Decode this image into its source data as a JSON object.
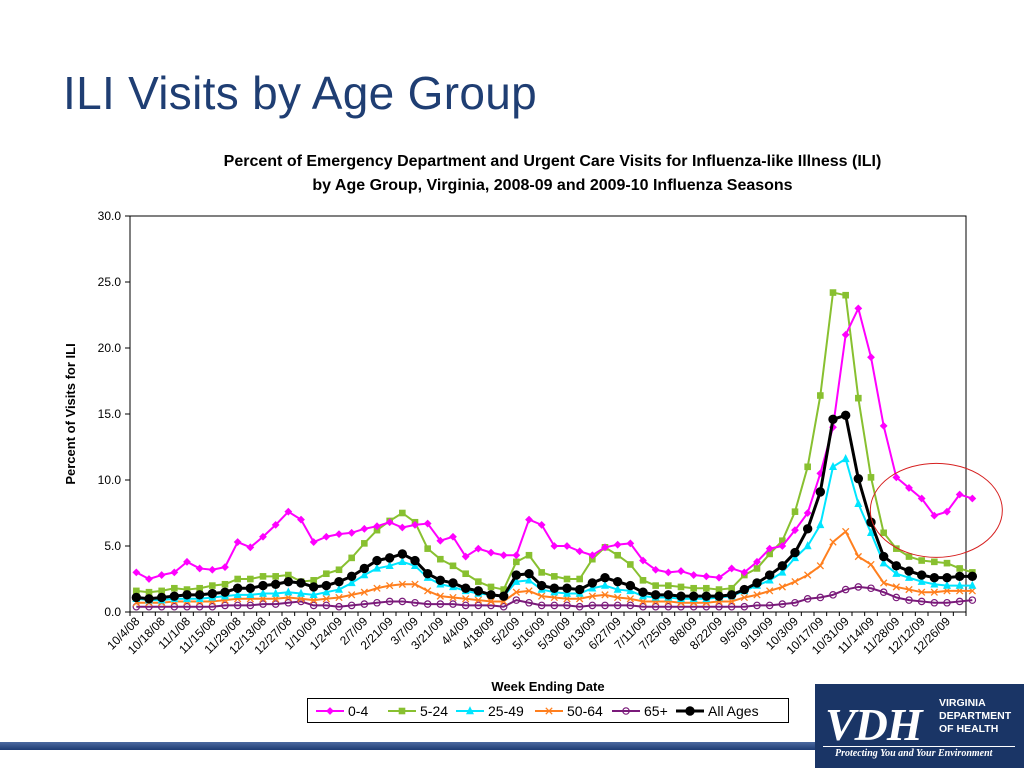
{
  "slide": {
    "title": "ILI Visits by Age Group"
  },
  "logo": {
    "mark": "VDH",
    "department": "VIRGINIA\nDEPARTMENT\nOF HEALTH",
    "tagline": "Protecting You and Your Environment",
    "colors": {
      "background": "#1a3566",
      "text": "#ffffff"
    }
  },
  "chart_data": {
    "type": "line",
    "title_line1": "Percent of Emergency Department and Urgent Care Visits for Influenza-like Illness (ILI)",
    "title_line2": "by Age Group, Virginia, 2008-09 and 2009-10 Influenza Seasons",
    "xlabel": "Week Ending Date",
    "ylabel": "Percent of Visits for ILI",
    "ylim": [
      0,
      30
    ],
    "yticks": [
      "0.0",
      "5.0",
      "10.0",
      "15.0",
      "20.0",
      "25.0",
      "30.0"
    ],
    "grid": false,
    "legend_position": "bottom",
    "annotation": "red circle highlighting late-December values",
    "x_tick_labels": [
      "10/4/08",
      "10/18/08",
      "11/1/08",
      "11/15/08",
      "11/29/08",
      "12/13/08",
      "12/27/08",
      "1/10/09",
      "1/24/09",
      "2/7/09",
      "2/21/09",
      "3/7/09",
      "3/21/09",
      "4/4/09",
      "4/18/09",
      "5/2/09",
      "5/16/09",
      "5/30/09",
      "6/13/09",
      "6/27/09",
      "7/11/09",
      "7/25/09",
      "8/8/09",
      "8/22/09",
      "9/5/09",
      "9/19/09",
      "10/3/09",
      "10/17/09",
      "10/31/09",
      "11/14/09",
      "11/28/09",
      "12/12/09",
      "12/26/09"
    ],
    "x_tick_week_index": [
      0,
      2,
      4,
      6,
      8,
      10,
      12,
      14,
      16,
      18,
      20,
      22,
      24,
      26,
      28,
      30,
      32,
      34,
      36,
      38,
      40,
      42,
      44,
      46,
      48,
      50,
      52,
      54,
      56,
      58,
      60,
      62,
      64
    ],
    "week_count": 66,
    "series": [
      {
        "name": "0-4",
        "color": "#ff00ff",
        "marker": "diamond",
        "values": [
          3.0,
          2.5,
          2.8,
          3.0,
          3.8,
          3.3,
          3.2,
          3.4,
          5.3,
          4.9,
          5.7,
          6.6,
          7.6,
          7.0,
          5.3,
          5.7,
          5.9,
          6.0,
          6.3,
          6.5,
          6.8,
          6.4,
          6.6,
          6.7,
          5.4,
          5.7,
          4.2,
          4.8,
          4.5,
          4.3,
          4.3,
          7.0,
          6.6,
          5.0,
          5.0,
          4.6,
          4.3,
          4.9,
          5.1,
          5.2,
          3.9,
          3.2,
          3.0,
          3.1,
          2.8,
          2.7,
          2.6,
          3.3,
          3.0,
          3.8,
          4.8,
          5.0,
          6.2,
          7.5,
          10.5,
          14.0,
          21.0,
          23.0,
          19.3,
          14.1,
          10.2,
          9.4,
          8.6,
          7.3,
          7.6,
          8.9,
          8.6
        ]
      },
      {
        "name": "5-24",
        "color": "#88c030",
        "marker": "square",
        "values": [
          1.6,
          1.5,
          1.6,
          1.8,
          1.7,
          1.8,
          2.0,
          2.1,
          2.5,
          2.5,
          2.7,
          2.7,
          2.8,
          2.3,
          2.4,
          2.9,
          3.2,
          4.1,
          5.2,
          6.2,
          6.9,
          7.5,
          6.8,
          4.8,
          4.0,
          3.5,
          2.9,
          2.3,
          1.9,
          1.7,
          3.8,
          4.3,
          3.0,
          2.7,
          2.5,
          2.5,
          4.0,
          4.9,
          4.3,
          3.6,
          2.4,
          2.0,
          2.0,
          1.9,
          1.8,
          1.8,
          1.7,
          1.8,
          2.8,
          3.3,
          4.4,
          5.4,
          7.6,
          11.0,
          16.4,
          24.2,
          24.0,
          16.2,
          10.2,
          6.0,
          4.8,
          4.2,
          3.9,
          3.8,
          3.7,
          3.3,
          3.0
        ]
      },
      {
        "name": "25-49",
        "color": "#00e5ff",
        "marker": "triangle",
        "values": [
          1.0,
          0.9,
          0.9,
          1.0,
          1.0,
          1.0,
          1.1,
          1.2,
          1.3,
          1.3,
          1.4,
          1.4,
          1.5,
          1.4,
          1.3,
          1.5,
          1.7,
          2.2,
          2.8,
          3.3,
          3.5,
          3.8,
          3.5,
          2.6,
          2.1,
          1.9,
          1.6,
          1.4,
          1.3,
          1.2,
          2.3,
          2.4,
          1.7,
          1.5,
          1.4,
          1.4,
          1.8,
          2.0,
          1.7,
          1.6,
          1.2,
          1.1,
          1.1,
          1.0,
          1.0,
          1.0,
          1.1,
          1.2,
          1.6,
          2.0,
          2.4,
          3.0,
          4.1,
          5.0,
          6.6,
          11.0,
          11.6,
          8.2,
          6.0,
          3.7,
          2.9,
          2.6,
          2.3,
          2.1,
          2.0,
          2.0,
          2.0
        ]
      },
      {
        "name": "50-64",
        "color": "#ff7f1e",
        "marker": "x",
        "values": [
          0.7,
          0.7,
          0.7,
          0.8,
          0.8,
          0.8,
          0.8,
          0.9,
          1.0,
          1.0,
          1.0,
          1.0,
          1.1,
          1.0,
          0.9,
          1.0,
          1.1,
          1.3,
          1.5,
          1.8,
          2.0,
          2.1,
          2.1,
          1.6,
          1.2,
          1.1,
          1.0,
          0.9,
          0.8,
          0.8,
          1.5,
          1.6,
          1.2,
          1.1,
          1.0,
          1.0,
          1.2,
          1.3,
          1.1,
          1.0,
          0.8,
          0.8,
          0.8,
          0.7,
          0.7,
          0.7,
          0.8,
          0.8,
          1.1,
          1.3,
          1.6,
          1.9,
          2.3,
          2.8,
          3.5,
          5.3,
          6.1,
          4.2,
          3.6,
          2.2,
          1.9,
          1.7,
          1.5,
          1.5,
          1.6,
          1.6,
          1.6
        ]
      },
      {
        "name": "65+",
        "color": "#7a1a7a",
        "marker": "circle",
        "values": [
          0.4,
          0.4,
          0.4,
          0.4,
          0.4,
          0.4,
          0.4,
          0.5,
          0.5,
          0.5,
          0.6,
          0.6,
          0.7,
          0.8,
          0.5,
          0.5,
          0.4,
          0.5,
          0.6,
          0.7,
          0.8,
          0.8,
          0.7,
          0.6,
          0.6,
          0.6,
          0.5,
          0.5,
          0.5,
          0.4,
          0.9,
          0.7,
          0.5,
          0.5,
          0.5,
          0.4,
          0.5,
          0.5,
          0.5,
          0.5,
          0.4,
          0.4,
          0.4,
          0.4,
          0.4,
          0.4,
          0.4,
          0.4,
          0.4,
          0.5,
          0.5,
          0.6,
          0.7,
          1.0,
          1.1,
          1.3,
          1.7,
          1.9,
          1.8,
          1.5,
          1.1,
          0.9,
          0.8,
          0.7,
          0.7,
          0.8,
          0.9
        ]
      },
      {
        "name": "All Ages",
        "color": "#000000",
        "marker": "circle-filled",
        "values": [
          1.1,
          1.0,
          1.1,
          1.2,
          1.3,
          1.3,
          1.4,
          1.5,
          1.8,
          1.8,
          2.0,
          2.1,
          2.3,
          2.2,
          1.9,
          2.0,
          2.3,
          2.7,
          3.3,
          3.9,
          4.1,
          4.4,
          3.9,
          2.9,
          2.4,
          2.2,
          1.8,
          1.6,
          1.3,
          1.2,
          2.8,
          2.9,
          2.0,
          1.8,
          1.8,
          1.7,
          2.2,
          2.6,
          2.3,
          2.0,
          1.5,
          1.3,
          1.3,
          1.2,
          1.2,
          1.2,
          1.2,
          1.3,
          1.7,
          2.2,
          2.8,
          3.5,
          4.5,
          6.3,
          9.1,
          14.6,
          14.9,
          10.1,
          6.8,
          4.2,
          3.5,
          3.1,
          2.8,
          2.6,
          2.6,
          2.7,
          2.7
        ]
      }
    ]
  }
}
